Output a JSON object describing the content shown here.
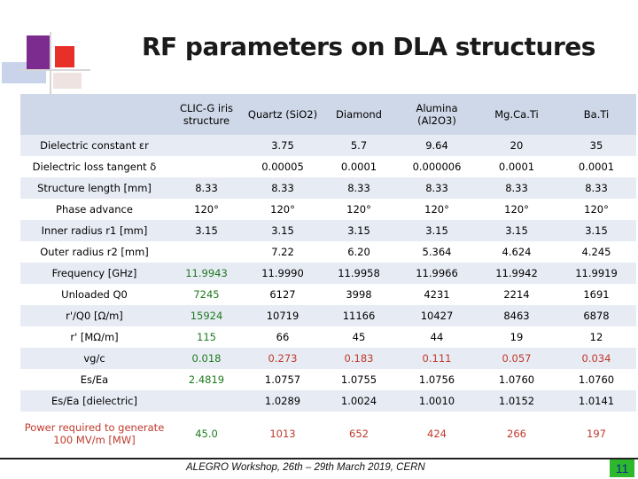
{
  "slide": {
    "title": "RF parameters on DLA structures",
    "footer": "ALEGRO Workshop, 26th – 29th March 2019, CERN",
    "page_number": "11"
  },
  "table": {
    "columns": [
      "CLIC-G iris structure",
      "Quartz (SiO2)",
      "Diamond",
      "Alumina (Al2O3)",
      "Mg.Ca.Ti",
      "Ba.Ti"
    ],
    "rows": [
      {
        "label": "Dielectric constant εr",
        "cells": [
          "",
          "3.75",
          "5.7",
          "9.64",
          "20",
          "35"
        ]
      },
      {
        "label": "Dielectric loss tangent δ",
        "cells": [
          "",
          "0.00005",
          "0.0001",
          "0.000006",
          "0.0001",
          "0.0001"
        ]
      },
      {
        "label": "Structure length [mm]",
        "cells": [
          "8.33",
          "8.33",
          "8.33",
          "8.33",
          "8.33",
          "8.33"
        ]
      },
      {
        "label": "Phase advance",
        "cells": [
          "120°",
          "120°",
          "120°",
          "120°",
          "120°",
          "120°"
        ]
      },
      {
        "label": "Inner radius r1 [mm]",
        "cells": [
          "3.15",
          "3.15",
          "3.15",
          "3.15",
          "3.15",
          "3.15"
        ]
      },
      {
        "label": "Outer radius r2 [mm]",
        "cells": [
          "",
          "7.22",
          "6.20",
          "5.364",
          "4.624",
          "4.245"
        ]
      },
      {
        "label": "Frequency [GHz]",
        "cells": [
          "11.9943",
          "11.9990",
          "11.9958",
          "11.9966",
          "11.9942",
          "11.9919"
        ]
      },
      {
        "label": "Unloaded Q0",
        "cells": [
          "7245",
          "6127",
          "3998",
          "4231",
          "2214",
          "1691"
        ]
      },
      {
        "label": "r'/Q0 [Ω/m]",
        "cells": [
          "15924",
          "10719",
          "11166",
          "10427",
          "8463",
          "6878"
        ]
      },
      {
        "label": "r' [MΩ/m]",
        "cells": [
          "115",
          "66",
          "45",
          "44",
          "19",
          "12"
        ]
      },
      {
        "label": "vg/c",
        "cells": [
          "0.018",
          "0.273",
          "0.183",
          "0.111",
          "0.057",
          "0.034"
        ]
      },
      {
        "label": "Es/Ea",
        "cells": [
          "2.4819",
          "1.0757",
          "1.0755",
          "1.0756",
          "1.0760",
          "1.0760"
        ]
      },
      {
        "label": "Es/Ea [dielectric]",
        "cells": [
          "",
          "1.0289",
          "1.0024",
          "1.0010",
          "1.0152",
          "1.0141"
        ]
      },
      {
        "label": "Power required to generate 100 MV/m [MW]",
        "cells": [
          "45.0",
          "1013",
          "652",
          "424",
          "266",
          "197"
        ]
      }
    ]
  },
  "colors": {
    "header_bg": "#cfd8e8",
    "row_band": "#e7ebf4",
    "green_text": "#1f7a1f",
    "red_text": "#c0392b",
    "page_badge": "#2eb82e"
  }
}
